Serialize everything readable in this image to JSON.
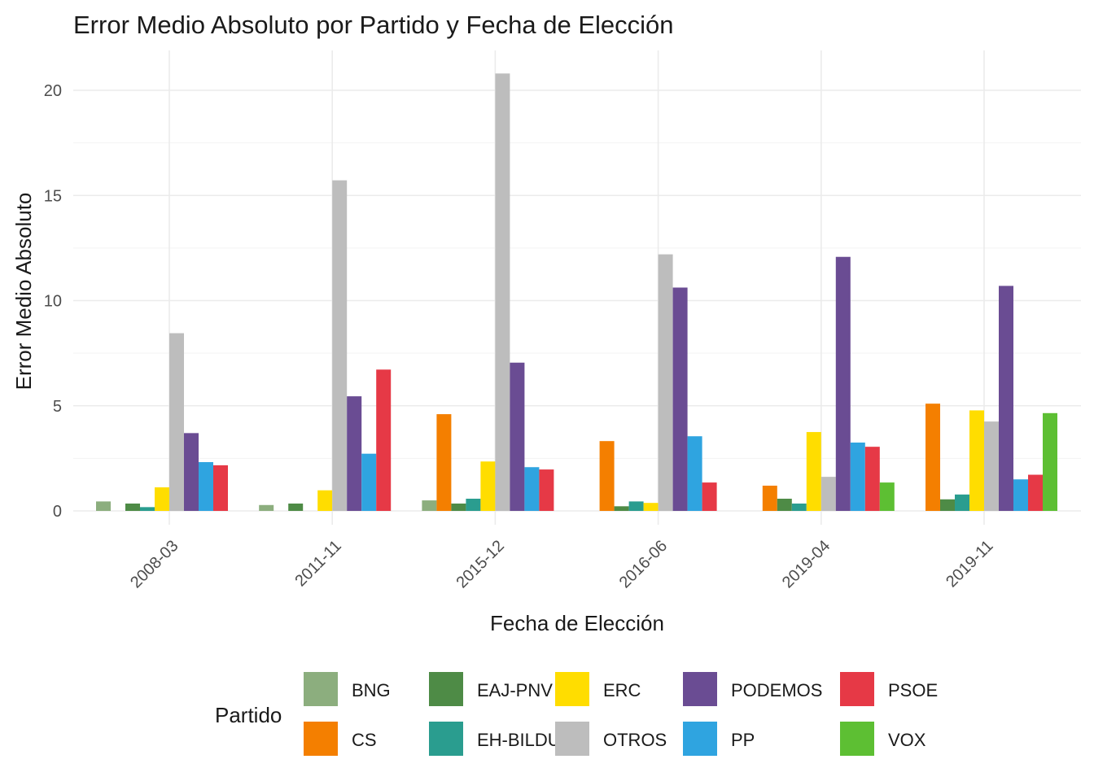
{
  "chart_data": {
    "type": "bar",
    "title": "Error Medio Absoluto por Partido y Fecha de Elección",
    "xlabel": "Fecha de Elección",
    "ylabel": "Error Medio Absoluto",
    "ylim": [
      0,
      22
    ],
    "yticks": [
      0,
      5,
      10,
      15,
      20
    ],
    "yticks_labels": [
      "0",
      "5",
      "10",
      "15",
      "20"
    ],
    "grid": true,
    "legend_title": "Partido",
    "legend_position": "bottom",
    "categories": [
      "2008-03",
      "2011-11",
      "2015-12",
      "2016-06",
      "2019-04",
      "2019-11"
    ],
    "series": [
      {
        "name": "BNG",
        "color": "#8cae7e",
        "values": [
          0.45,
          0.28,
          0.5,
          null,
          null,
          null
        ]
      },
      {
        "name": "CS",
        "color": "#f47f00",
        "values": [
          null,
          null,
          4.6,
          3.32,
          1.2,
          5.1
        ]
      },
      {
        "name": "EAJ-PNV",
        "color": "#4e8b46",
        "values": [
          0.35,
          0.35,
          0.35,
          0.22,
          0.58,
          0.55
        ]
      },
      {
        "name": "EH-BILDU",
        "color": "#2a9d8f",
        "values": [
          0.18,
          null,
          0.58,
          0.45,
          0.35,
          0.78
        ]
      },
      {
        "name": "ERC",
        "color": "#ffdd00",
        "values": [
          1.12,
          0.98,
          2.35,
          0.38,
          3.75,
          4.78
        ]
      },
      {
        "name": "OTROS",
        "color": "#bdbdbd",
        "values": [
          8.45,
          15.72,
          20.8,
          12.2,
          1.62,
          4.25
        ]
      },
      {
        "name": "PODEMOS",
        "color": "#6a4c93",
        "values": [
          3.7,
          5.45,
          7.05,
          10.62,
          12.08,
          10.7
        ]
      },
      {
        "name": "PP",
        "color": "#2fa4e0",
        "values": [
          2.32,
          2.72,
          2.08,
          3.55,
          3.25,
          1.5
        ]
      },
      {
        "name": "PSOE",
        "color": "#e63946",
        "values": [
          2.17,
          6.72,
          1.97,
          1.35,
          3.05,
          1.72
        ]
      },
      {
        "name": "VOX",
        "color": "#5dbf33",
        "values": [
          null,
          null,
          null,
          null,
          1.35,
          4.65
        ]
      }
    ]
  }
}
